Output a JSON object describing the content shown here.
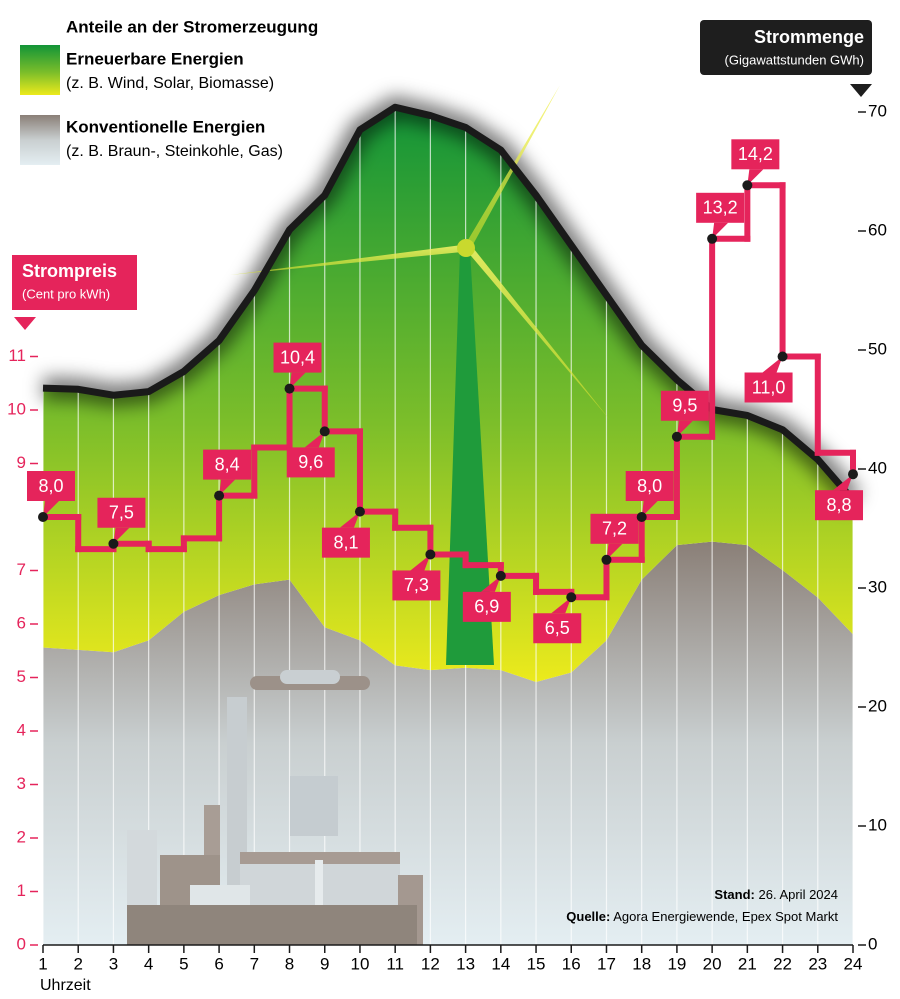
{
  "chart_data": {
    "type": "area",
    "title": "Anteile an der Stromerzeugung",
    "x": [
      1,
      2,
      3,
      4,
      5,
      6,
      7,
      8,
      9,
      10,
      11,
      12,
      13,
      14,
      15,
      16,
      17,
      18,
      19,
      20,
      21,
      22,
      23,
      24
    ],
    "xlim": [
      1,
      24
    ],
    "xticks": [
      1,
      2,
      3,
      4,
      5,
      6,
      7,
      8,
      9,
      10,
      11,
      12,
      13,
      14,
      15,
      16,
      17,
      18,
      19,
      20,
      21,
      22,
      23,
      24
    ],
    "xlabel": "Uhrzeit",
    "ylabel": "Strompreis",
    "ylabel_unit": "(Cent pro kWh)",
    "ylim": [
      0,
      11
    ],
    "yticks": [
      0,
      1,
      2,
      3,
      4,
      5,
      6,
      7,
      9,
      10,
      11
    ],
    "y2label": "Strommenge",
    "y2label_unit": "(Gigawattstunden GWh)",
    "y2lim": [
      0,
      70
    ],
    "y2ticks": [
      0,
      10,
      20,
      30,
      40,
      50,
      60,
      70
    ],
    "series": [
      {
        "name": "Konventionelle Energien",
        "description": "(z. B. Braun-, Steinkohle, Gas)",
        "color": "#8d837b",
        "axis": "y2",
        "values": [
          25.0,
          24.8,
          24.6,
          25.6,
          28.0,
          29.4,
          30.3,
          30.7,
          26.7,
          25.6,
          23.5,
          23.1,
          23.3,
          23.1,
          22.1,
          22.9,
          25.6,
          30.7,
          33.6,
          33.9,
          33.6,
          31.5,
          29.2,
          26.1
        ]
      },
      {
        "name": "Erneuerbare Energien",
        "description": "(z. B. Wind, Solar, Biomasse)",
        "color": "#1f9b3b",
        "axis": "y2",
        "values": [
          21.8,
          21.9,
          21.6,
          20.9,
          20.2,
          21.4,
          24.7,
          29.4,
          36.3,
          42.9,
          46.9,
          46.6,
          45.4,
          43.7,
          40.9,
          35.9,
          29.0,
          19.7,
          13.9,
          11.1,
          10.9,
          11.8,
          11.6,
          11.3
        ]
      },
      {
        "type": "step",
        "color": "#e5245b",
        "axis": "y",
        "values": [
          8.0,
          7.4,
          7.5,
          7.4,
          7.6,
          8.4,
          9.3,
          10.4,
          9.6,
          8.1,
          7.8,
          7.3,
          7.1,
          6.9,
          6.6,
          6.5,
          7.2,
          8.0,
          9.5,
          13.2,
          14.2,
          11.0,
          9.2,
          8.8
        ],
        "value_labels": [
          "8,0",
          null,
          "7,5",
          null,
          null,
          "8,4",
          null,
          "10,4",
          "9,6",
          "8,1",
          null,
          "7,3",
          null,
          "6,9",
          null,
          "6,5",
          "7,2",
          "8,0",
          "9,5",
          "13,2",
          "14,2",
          "11,0",
          null,
          "8,8"
        ]
      }
    ],
    "notes": [
      {
        "label": "Stand:",
        "text": "26. April 2024"
      },
      {
        "label": "Quelle:",
        "text": "Agora Energiewende, Epex Spot Markt"
      }
    ]
  }
}
